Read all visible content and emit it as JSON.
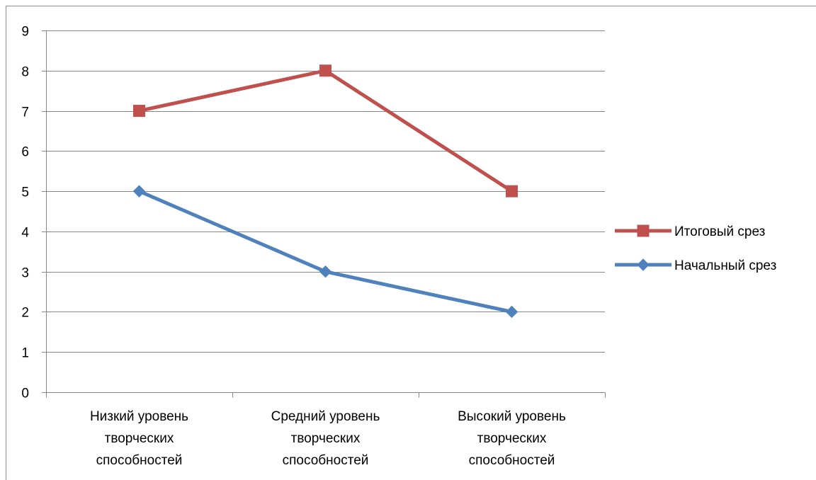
{
  "chart_data": {
    "type": "line",
    "categories": [
      [
        "Низкий уровень",
        "творческих",
        "способностей"
      ],
      [
        "Средний уровень",
        "творческих",
        "способностей"
      ],
      [
        "Высокий уровень",
        "творческих",
        "способностей"
      ]
    ],
    "series": [
      {
        "name": "Итоговый срез",
        "values": [
          7,
          8,
          5
        ],
        "color": "#C0504D",
        "marker": "square"
      },
      {
        "name": "Начальный срез",
        "values": [
          5,
          3,
          2
        ],
        "color": "#4F81BD",
        "marker": "diamond"
      }
    ],
    "y_ticks": [
      "0",
      "1",
      "2",
      "3",
      "4",
      "5",
      "6",
      "7",
      "8",
      "9"
    ],
    "ylim": [
      0,
      9
    ],
    "grid": true,
    "legend_position": "right"
  }
}
